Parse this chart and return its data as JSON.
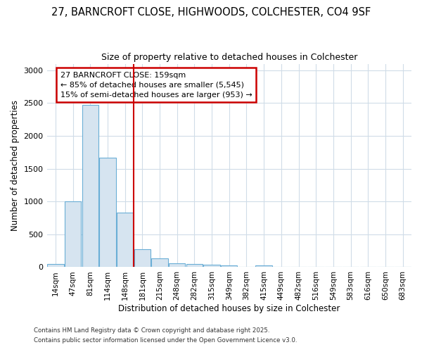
{
  "title_line1": "27, BARNCROFT CLOSE, HIGHWOODS, COLCHESTER, CO4 9SF",
  "title_line2": "Size of property relative to detached houses in Colchester",
  "xlabel": "Distribution of detached houses by size in Colchester",
  "ylabel": "Number of detached properties",
  "categories": [
    "14sqm",
    "47sqm",
    "81sqm",
    "114sqm",
    "148sqm",
    "181sqm",
    "215sqm",
    "248sqm",
    "282sqm",
    "315sqm",
    "349sqm",
    "382sqm",
    "415sqm",
    "449sqm",
    "482sqm",
    "516sqm",
    "549sqm",
    "583sqm",
    "616sqm",
    "650sqm",
    "683sqm"
  ],
  "values": [
    50,
    1005,
    2475,
    1665,
    830,
    275,
    130,
    60,
    50,
    35,
    25,
    0,
    25,
    0,
    0,
    0,
    0,
    0,
    0,
    0,
    0
  ],
  "bar_color": "#d6e4f0",
  "bar_edge_color": "#6aaed6",
  "vline_color": "#cc0000",
  "vline_x_index": 4,
  "annotation_text": "27 BARNCROFT CLOSE: 159sqm\n← 85% of detached houses are smaller (5,545)\n15% of semi-detached houses are larger (953) →",
  "annotation_box_edgecolor": "#cc0000",
  "ylim": [
    0,
    3100
  ],
  "yticks": [
    0,
    500,
    1000,
    1500,
    2000,
    2500,
    3000
  ],
  "bg_color": "#ffffff",
  "fig_bg_color": "#ffffff",
  "grid_color": "#d0dce8",
  "footer_line1": "Contains HM Land Registry data © Crown copyright and database right 2025.",
  "footer_line2": "Contains public sector information licensed under the Open Government Licence v3.0."
}
